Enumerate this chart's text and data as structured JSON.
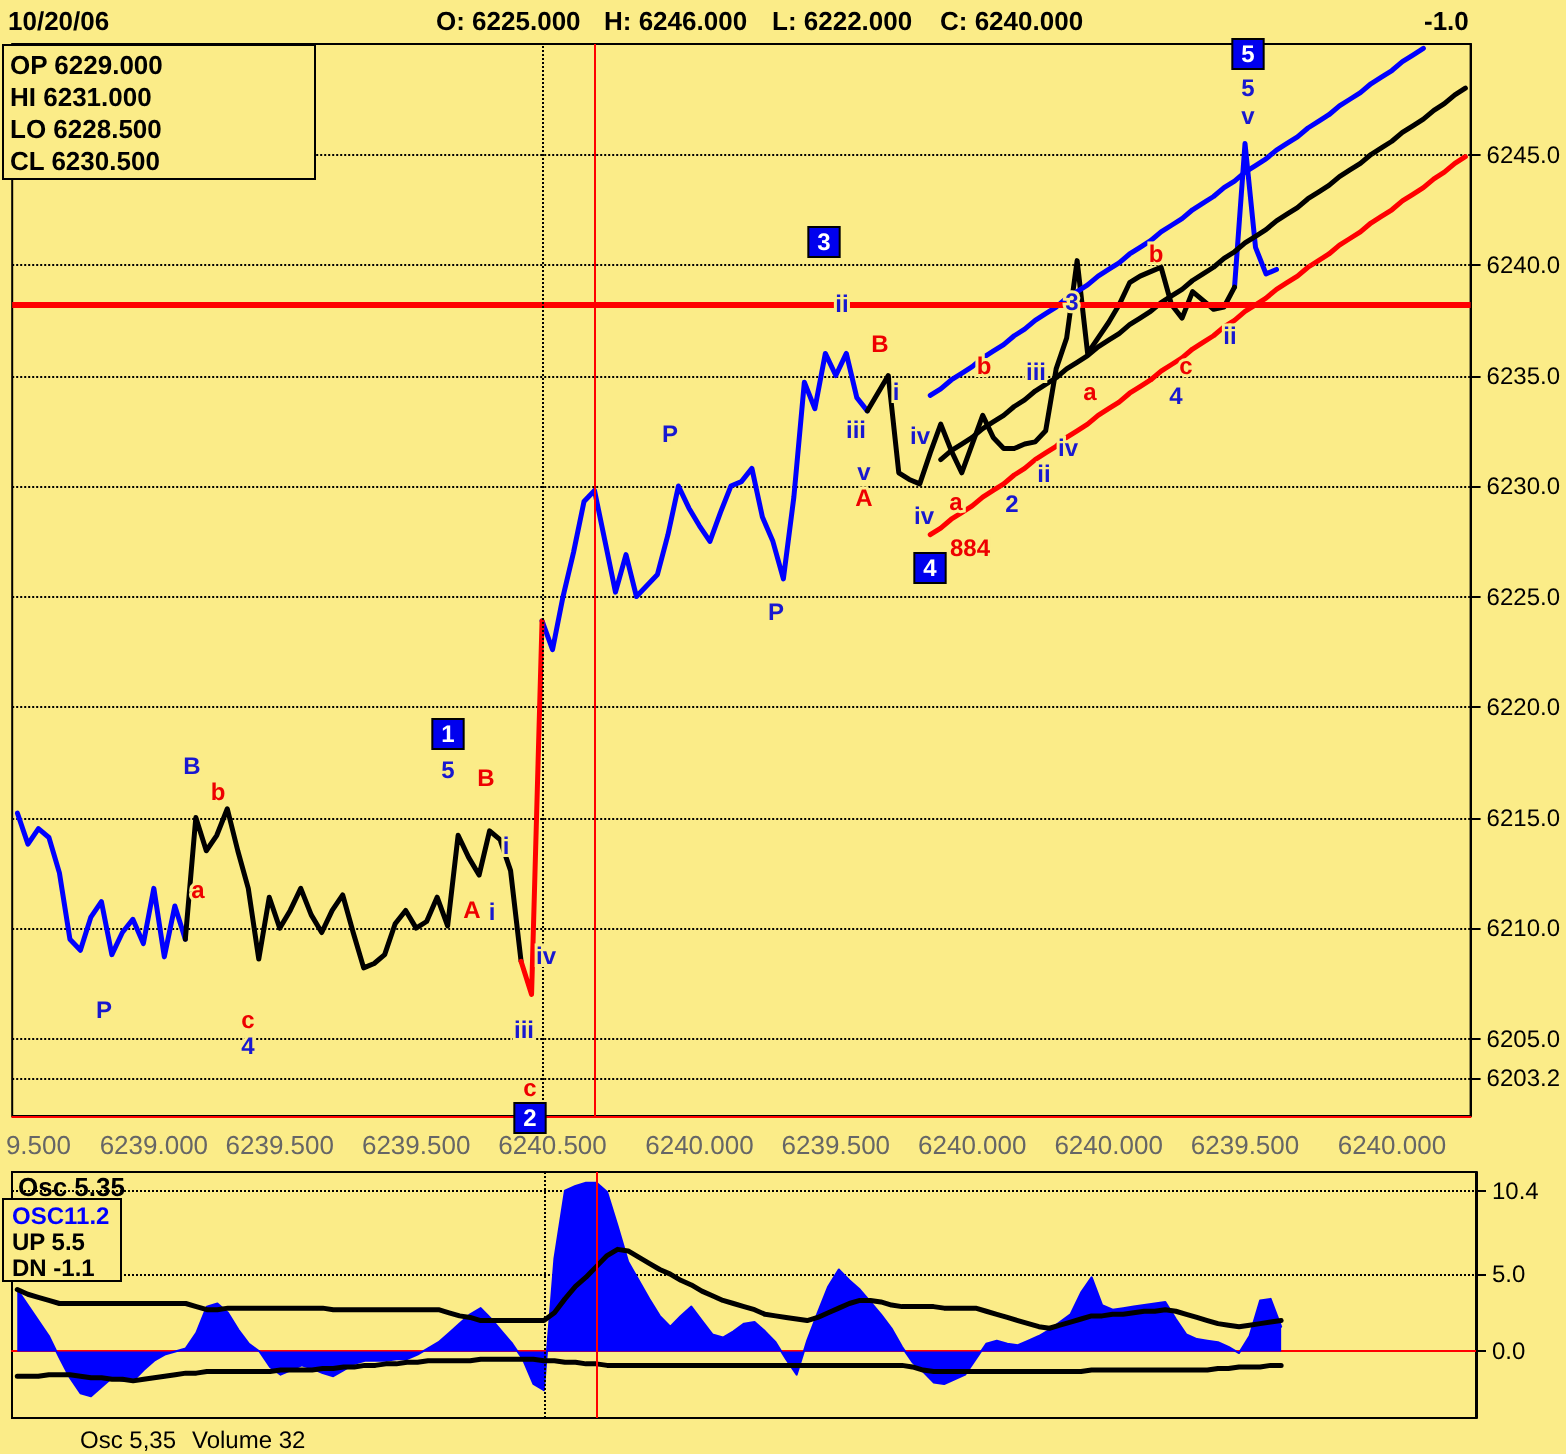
{
  "chart_data": [
    {
      "type": "line",
      "categories": [
        null,
        null,
        "9.500",
        null,
        null,
        null,
        null,
        null,
        null,
        null,
        null,
        null,
        null,
        "6239.000",
        null,
        null,
        null,
        null,
        null,
        null,
        null,
        null,
        null,
        null,
        null,
        "6239.500",
        null,
        null,
        null,
        null,
        null,
        null,
        null,
        null,
        null,
        null,
        null,
        null,
        "6239.500",
        null,
        null,
        null,
        null,
        null,
        null,
        null,
        null,
        null,
        null,
        null,
        null,
        "6240.500",
        null,
        null,
        null,
        null,
        null,
        null,
        null,
        null,
        null,
        null,
        null,
        null,
        null,
        "6240.000",
        null,
        null,
        null,
        null,
        null,
        null,
        null,
        null,
        null,
        null,
        null,
        null,
        "6239.500",
        null,
        null,
        null,
        null,
        null,
        null,
        null,
        null,
        null,
        null,
        null,
        null,
        "6240.000",
        null,
        null,
        null,
        null,
        null,
        null,
        null,
        null,
        null,
        null,
        null,
        null,
        "6240.000",
        null,
        null,
        null,
        null,
        null,
        null,
        null,
        null,
        null,
        null,
        null,
        null,
        "6239.500",
        null,
        null,
        null,
        null,
        null,
        null,
        null,
        null,
        null,
        null,
        null,
        null,
        null,
        "6240.000",
        null,
        null,
        null,
        null,
        null,
        null,
        null
      ],
      "ylim": [
        6201.5,
        6250
      ],
      "yticks": [
        6203.2,
        {
          "value": 6205,
          "label": "6205.0"
        },
        {
          "value": 6210,
          "label": "6210.0"
        },
        {
          "value": 6215,
          "label": "6215.0"
        },
        {
          "value": 6220,
          "label": "6220.0"
        },
        {
          "value": 6225,
          "label": "6225.0"
        },
        {
          "value": 6230,
          "label": "6230.0"
        },
        {
          "value": 6235,
          "label": "6235.0"
        },
        {
          "value": 6240,
          "label": "6240.0"
        },
        {
          "value": 6245,
          "label": "6245.0"
        }
      ],
      "grid": "y",
      "marker": "none",
      "line_style": "solid",
      "series": [
        {
          "color": "#0000ff",
          "values": [
            6215.2,
            6213.8,
            6214.5,
            6214.1,
            6212.5,
            6209.5,
            6209.0,
            6210.5,
            6211.2,
            6208.8,
            6209.8,
            6210.4,
            6209.3,
            6211.8,
            6208.7,
            6211.0,
            6209.5,
            null,
            null,
            null,
            null,
            null,
            null,
            null,
            null,
            null,
            null,
            null,
            null,
            null,
            null,
            null,
            null,
            null,
            null,
            null,
            null,
            null,
            null,
            null,
            null,
            null,
            null,
            null,
            null,
            null,
            null,
            null,
            null,
            null,
            6223.9,
            6222.6,
            6225.0,
            6227.0,
            6229.3,
            6229.8,
            6227.5,
            6225.2,
            6226.9,
            6225.0,
            6225.5,
            6226.0,
            6227.8,
            6230.0,
            6229.0,
            6228.2,
            6227.5,
            6228.8,
            6230.0,
            6230.2,
            6230.8,
            6228.6,
            6227.5,
            6225.8,
            6229.5,
            6234.7,
            6233.5,
            6236.0,
            6235.0,
            6236.0,
            6234.0,
            6233.4,
            null,
            null,
            null,
            null,
            null,
            null,
            null,
            null,
            null,
            null,
            null,
            null,
            null,
            null,
            null,
            null,
            null,
            null,
            null,
            null,
            null,
            null,
            null,
            null,
            null,
            null,
            null,
            null,
            null,
            null,
            null,
            null,
            null,
            null,
            6239.0,
            6245.5,
            6240.8,
            6239.6,
            6239.8,
            null,
            null,
            null,
            null,
            null,
            null,
            null,
            null,
            null,
            null,
            null,
            null,
            null,
            null,
            null,
            null,
            null,
            null
          ]
        },
        {
          "color": "#000000",
          "values": [
            null,
            null,
            null,
            null,
            null,
            null,
            null,
            null,
            null,
            null,
            null,
            null,
            null,
            null,
            null,
            null,
            6209.5,
            6215.0,
            6213.5,
            6214.2,
            6215.4,
            6213.5,
            6211.8,
            6208.6,
            6211.4,
            6210.0,
            6210.8,
            6211.8,
            6210.6,
            6209.8,
            6210.8,
            6211.5,
            6209.8,
            6208.2,
            6208.4,
            6208.8,
            6210.2,
            6210.8,
            6210.0,
            6210.3,
            6211.4,
            6210.1,
            6214.2,
            6213.2,
            6212.4,
            6214.4,
            6214.0,
            6212.6,
            6208.5,
            null,
            null,
            null,
            null,
            null,
            null,
            null,
            null,
            null,
            null,
            null,
            null,
            null,
            null,
            null,
            null,
            null,
            null,
            null,
            null,
            null,
            null,
            null,
            null,
            null,
            null,
            null,
            null,
            null,
            null,
            null,
            null,
            6233.4,
            6234.2,
            6235.0,
            6230.6,
            6230.3,
            6230.1,
            6231.5,
            6232.8,
            6231.6,
            6230.6,
            6231.9,
            6233.2,
            6232.2,
            6231.7,
            6231.7,
            6231.9,
            6232.0,
            6232.5,
            6235.3,
            6236.7,
            6240.2,
            6236.0,
            6236.7,
            6237.4,
            6238.2,
            6239.2,
            6239.5,
            6239.7,
            6239.9,
            6238.2,
            6237.6,
            6238.8,
            6238.4,
            6238.0,
            6238.1,
            6239.0,
            null,
            null,
            null,
            null,
            null,
            null,
            null,
            null,
            null,
            null,
            null,
            null,
            null,
            null,
            null,
            null,
            null,
            null,
            null,
            null,
            null,
            null
          ]
        },
        {
          "color": "#ff0000",
          "values": [
            null,
            null,
            null,
            null,
            null,
            null,
            null,
            null,
            null,
            null,
            null,
            null,
            null,
            null,
            null,
            null,
            null,
            null,
            null,
            null,
            null,
            null,
            null,
            null,
            null,
            null,
            null,
            null,
            null,
            null,
            null,
            null,
            null,
            null,
            null,
            null,
            null,
            null,
            null,
            null,
            null,
            null,
            null,
            null,
            null,
            null,
            null,
            null,
            6208.5,
            6207.0,
            6223.9,
            null,
            null,
            null,
            null,
            null,
            null,
            null,
            null,
            null,
            null,
            null,
            null,
            null,
            null,
            null,
            null,
            null,
            null,
            null,
            null,
            null,
            null,
            null,
            null,
            null,
            null,
            null,
            null,
            null,
            null,
            null,
            null,
            null,
            null,
            null,
            null,
            null,
            null,
            null,
            null,
            null,
            null,
            null,
            null,
            null,
            null,
            null,
            null,
            null,
            null,
            null,
            null,
            null,
            null,
            null,
            null,
            null,
            null,
            null,
            null,
            null,
            null,
            null,
            null,
            null,
            null,
            null,
            null,
            null,
            null,
            null,
            null,
            null,
            null,
            null,
            null,
            null,
            null,
            null,
            null,
            null,
            null,
            null,
            null,
            null,
            null,
            null,
            null
          ]
        },
        {
          "color": "#0000ff",
          "values": [
            null,
            null,
            null,
            null,
            null,
            null,
            null,
            null,
            null,
            null,
            null,
            null,
            null,
            null,
            null,
            null,
            null,
            null,
            null,
            null,
            null,
            null,
            null,
            null,
            null,
            null,
            null,
            null,
            null,
            null,
            null,
            null,
            null,
            null,
            null,
            null,
            null,
            null,
            null,
            null,
            null,
            null,
            null,
            null,
            null,
            null,
            null,
            null,
            null,
            null,
            null,
            null,
            null,
            null,
            null,
            null,
            null,
            null,
            null,
            null,
            null,
            null,
            null,
            null,
            null,
            null,
            null,
            null,
            null,
            null,
            null,
            null,
            null,
            null,
            null,
            null,
            null,
            null,
            null,
            null,
            null,
            null,
            null,
            null,
            null,
            null,
            null,
            6234.1,
            6234.4,
            6234.8,
            6235.1,
            6235.4,
            6235.8,
            6236.1,
            6236.4,
            6236.8,
            6237.1,
            6237.5,
            6237.8,
            6238.1,
            6238.5,
            6238.8,
            6239.1,
            6239.5,
            6239.8,
            6240.1,
            6240.5,
            6240.8,
            6241.1,
            6241.5,
            6241.8,
            6242.1,
            6242.5,
            6242.8,
            6243.1,
            6243.5,
            6243.8,
            6244.2,
            6244.5,
            6244.8,
            6245.2,
            6245.5,
            6245.8,
            6246.2,
            6246.5,
            6246.8,
            6247.2,
            6247.5,
            6247.8,
            6248.2,
            6248.5,
            6248.8,
            6249.2,
            6249.5,
            6249.8,
            null,
            null,
            null,
            null
          ]
        },
        {
          "color": "#000000",
          "values": [
            null,
            null,
            null,
            null,
            null,
            null,
            null,
            null,
            null,
            null,
            null,
            null,
            null,
            null,
            null,
            null,
            null,
            null,
            null,
            null,
            null,
            null,
            null,
            null,
            null,
            null,
            null,
            null,
            null,
            null,
            null,
            null,
            null,
            null,
            null,
            null,
            null,
            null,
            null,
            null,
            null,
            null,
            null,
            null,
            null,
            null,
            null,
            null,
            null,
            null,
            null,
            null,
            null,
            null,
            null,
            null,
            null,
            null,
            null,
            null,
            null,
            null,
            null,
            null,
            null,
            null,
            null,
            null,
            null,
            null,
            null,
            null,
            null,
            null,
            null,
            null,
            null,
            null,
            null,
            null,
            null,
            null,
            null,
            null,
            null,
            null,
            null,
            null,
            6231.2,
            6231.6,
            6231.9,
            6232.2,
            6232.6,
            6232.9,
            6233.2,
            6233.6,
            6233.9,
            6234.3,
            6234.6,
            6234.9,
            6235.3,
            6235.6,
            6235.9,
            6236.3,
            6236.6,
            6236.9,
            6237.3,
            6237.6,
            6237.9,
            6238.3,
            6238.6,
            6238.9,
            6239.3,
            6239.6,
            6239.9,
            6240.3,
            6240.6,
            6241.0,
            6241.3,
            6241.6,
            6242.0,
            6242.3,
            6242.6,
            6243.0,
            6243.3,
            6243.6,
            6244.0,
            6244.3,
            6244.6,
            6245.0,
            6245.3,
            6245.6,
            6246.0,
            6246.3,
            6246.6,
            6247.0,
            6247.3,
            6247.7,
            6248.0
          ]
        },
        {
          "color": "#ff0000",
          "values": [
            null,
            null,
            null,
            null,
            null,
            null,
            null,
            null,
            null,
            null,
            null,
            null,
            null,
            null,
            null,
            null,
            null,
            null,
            null,
            null,
            null,
            null,
            null,
            null,
            null,
            null,
            null,
            null,
            null,
            null,
            null,
            null,
            null,
            null,
            null,
            null,
            null,
            null,
            null,
            null,
            null,
            null,
            null,
            null,
            null,
            null,
            null,
            null,
            null,
            null,
            null,
            null,
            null,
            null,
            null,
            null,
            null,
            null,
            null,
            null,
            null,
            null,
            null,
            null,
            null,
            null,
            null,
            null,
            null,
            null,
            null,
            null,
            null,
            null,
            null,
            null,
            null,
            null,
            null,
            null,
            null,
            null,
            null,
            null,
            null,
            null,
            null,
            6227.8,
            6228.1,
            6228.5,
            6228.8,
            6229.1,
            6229.5,
            6229.8,
            6230.1,
            6230.5,
            6230.8,
            6231.2,
            6231.5,
            6231.8,
            6232.2,
            6232.5,
            6232.8,
            6233.2,
            6233.5,
            6233.8,
            6234.2,
            6234.5,
            6234.8,
            6235.2,
            6235.5,
            6235.8,
            6236.2,
            6236.5,
            6236.8,
            6237.2,
            6237.5,
            6237.9,
            6238.2,
            6238.5,
            6238.9,
            6239.2,
            6239.5,
            6239.9,
            6240.2,
            6240.5,
            6240.9,
            6241.2,
            6241.5,
            6241.9,
            6242.2,
            6242.5,
            6242.9,
            6243.2,
            6243.5,
            6243.9,
            6244.2,
            6244.6,
            6244.9
          ]
        }
      ],
      "ref_lines": [
        {
          "axis": "y",
          "value": 6238.2,
          "color": "#ff0000",
          "line_style": "solid"
        }
      ],
      "annotations": [
        "10/20/06",
        "O: 6225.000",
        "H: 6246.000",
        "L: 6222.000",
        "C: 6240.000",
        "-1.0",
        "OP 6229.000",
        "HI 6231.000",
        "LO 6228.500",
        "CL 6230.500",
        "P",
        "B",
        "b",
        "a",
        "c",
        "4",
        "1",
        "5",
        "B",
        "A",
        "i",
        "i",
        "iv",
        "iii",
        "c",
        "2",
        "P",
        "P",
        "3",
        "ii",
        "B",
        "iii",
        "v",
        "A",
        "i",
        "iv",
        "iv",
        "4",
        "884",
        "a",
        "b",
        "2",
        "ii",
        "iv",
        "iii",
        "a",
        "3",
        "b",
        "c",
        "4",
        "ii",
        "5",
        "5",
        "v"
      ]
    },
    {
      "type": "line",
      "title": "Osc 5.35",
      "categories": [
        null,
        null,
        "9.500",
        null,
        null,
        null,
        null,
        null,
        null,
        null,
        null,
        null,
        null,
        "6239.000",
        null,
        null,
        null,
        null,
        null,
        null,
        null,
        null,
        null,
        null,
        null,
        "6239.500",
        null,
        null,
        null,
        null,
        null,
        null,
        null,
        null,
        null,
        null,
        null,
        null,
        "6239.500",
        null,
        null,
        null,
        null,
        null,
        null,
        null,
        null,
        null,
        null,
        null,
        null,
        "6240.500",
        null,
        null,
        null,
        null,
        null,
        null,
        null,
        null,
        null,
        null,
        null,
        null,
        null,
        "6240.000",
        null,
        null,
        null,
        null,
        null,
        null,
        null,
        null,
        null,
        null,
        null,
        null,
        "6239.500",
        null,
        null,
        null,
        null,
        null,
        null,
        null,
        null,
        null,
        null,
        null,
        null,
        "6240.000",
        null,
        null,
        null,
        null,
        null,
        null,
        null,
        null,
        null,
        null,
        null,
        null,
        "6240.000",
        null,
        null,
        null,
        null,
        null,
        null,
        null,
        null,
        null,
        null,
        null,
        null,
        "6239.500",
        null,
        null,
        null,
        null,
        null,
        null,
        null,
        null,
        null,
        null,
        null,
        null,
        null,
        "6240.000",
        null,
        null,
        null,
        null,
        null,
        null,
        null
      ],
      "tick_labels": "y",
      "ylim": [
        -4.3,
        11.6
      ],
      "yticks": [
        {
          "value": 0,
          "label": "0.0"
        },
        {
          "value": 5,
          "label": "5.0"
        },
        10.4
      ],
      "grid": "y",
      "marker": "none",
      "line_style": "solid",
      "series": [
        {
          "type": "area",
          "color": "#0000ff",
          "values": [
            4.0,
            3.0,
            2.0,
            1.0,
            -0.4,
            -1.7,
            -2.7,
            -2.9,
            -2.3,
            -1.7,
            -1.9,
            -1.9,
            -1.2,
            -0.6,
            -0.2,
            0.0,
            0.2,
            1.2,
            2.9,
            3.1,
            2.5,
            1.4,
            0.5,
            0.0,
            -1.0,
            -1.5,
            -1.2,
            -0.9,
            -1.1,
            -1.4,
            -1.6,
            -1.2,
            -0.8,
            -0.6,
            -0.6,
            -0.6,
            -0.5,
            -0.5,
            -0.2,
            0.2,
            0.6,
            1.2,
            1.8,
            2.4,
            2.8,
            2.1,
            1.3,
            0.5,
            -0.5,
            -2.1,
            -2.5,
            6.0,
            10.4,
            10.7,
            10.9,
            10.9,
            10.3,
            8.1,
            5.8,
            4.6,
            3.4,
            2.3,
            1.6,
            2.3,
            2.9,
            2.0,
            1.1,
            0.9,
            1.3,
            1.8,
            1.9,
            1.3,
            0.6,
            -0.5,
            -1.5,
            0.7,
            2.5,
            4.2,
            5.3,
            4.6,
            4.0,
            3.2,
            2.4,
            1.5,
            0.3,
            -0.7,
            -1.3,
            -2.0,
            -2.1,
            -1.8,
            -1.5,
            -0.5,
            0.5,
            0.7,
            0.5,
            0.4,
            0.7,
            1.0,
            1.4,
            1.9,
            2.4,
            3.8,
            4.8,
            3.0,
            2.7,
            2.8,
            2.9,
            3.0,
            3.1,
            3.2,
            2.1,
            1.1,
            0.8,
            0.7,
            0.6,
            0.3,
            -0.1,
            1.0,
            3.3,
            3.4,
            1.6,
            null,
            null,
            null,
            null,
            null,
            null,
            null,
            null,
            null,
            null,
            null,
            null,
            null,
            null,
            null,
            null,
            null,
            null
          ]
        },
        {
          "color": "#000000",
          "values": [
            4.0,
            3.7,
            3.5,
            3.3,
            3.1,
            3.1,
            3.1,
            3.1,
            3.1,
            3.1,
            3.1,
            3.1,
            3.1,
            3.1,
            3.1,
            3.1,
            3.1,
            2.9,
            2.7,
            2.7,
            2.8,
            2.8,
            2.8,
            2.8,
            2.8,
            2.8,
            2.8,
            2.8,
            2.8,
            2.8,
            2.7,
            2.7,
            2.7,
            2.7,
            2.7,
            2.7,
            2.7,
            2.7,
            2.7,
            2.7,
            2.7,
            2.5,
            2.3,
            2.2,
            2.0,
            2.0,
            2.0,
            2.0,
            2.0,
            2.0,
            2.0,
            2.5,
            3.4,
            4.2,
            4.8,
            5.5,
            6.2,
            6.6,
            6.5,
            6.1,
            5.7,
            5.3,
            5.0,
            4.6,
            4.3,
            3.9,
            3.6,
            3.3,
            3.1,
            2.9,
            2.7,
            2.4,
            2.3,
            2.2,
            2.1,
            2.0,
            2.2,
            2.5,
            2.8,
            3.1,
            3.3,
            3.3,
            3.2,
            3.0,
            2.9,
            2.9,
            2.9,
            2.9,
            2.8,
            2.8,
            2.8,
            2.8,
            2.6,
            2.4,
            2.2,
            2.0,
            1.8,
            1.6,
            1.5,
            1.7,
            1.9,
            2.1,
            2.3,
            2.3,
            2.4,
            2.4,
            2.5,
            2.6,
            2.6,
            2.7,
            2.6,
            2.4,
            2.2,
            2.0,
            1.8,
            1.7,
            1.6,
            1.7,
            1.8,
            1.9,
            2.0,
            null,
            null,
            null,
            null,
            null,
            null,
            null,
            null,
            null,
            null,
            null,
            null,
            null,
            null,
            null,
            null,
            null,
            null
          ]
        },
        {
          "color": "#000000",
          "values": [
            -1.6,
            -1.6,
            -1.6,
            -1.5,
            -1.5,
            -1.5,
            -1.6,
            -1.7,
            -1.7,
            -1.8,
            -1.8,
            -1.9,
            -1.8,
            -1.7,
            -1.6,
            -1.5,
            -1.4,
            -1.4,
            -1.3,
            -1.3,
            -1.3,
            -1.3,
            -1.3,
            -1.3,
            -1.3,
            -1.2,
            -1.2,
            -1.2,
            -1.2,
            -1.1,
            -1.1,
            -1.0,
            -1.0,
            -0.9,
            -0.9,
            -0.8,
            -0.8,
            -0.7,
            -0.7,
            -0.6,
            -0.6,
            -0.6,
            -0.6,
            -0.6,
            -0.5,
            -0.5,
            -0.5,
            -0.5,
            -0.5,
            -0.5,
            -0.6,
            -0.6,
            -0.7,
            -0.7,
            -0.8,
            -0.8,
            -0.9,
            -0.9,
            -0.9,
            -0.9,
            -0.9,
            -0.9,
            -0.9,
            -0.9,
            -0.9,
            -0.9,
            -0.9,
            -0.9,
            -0.9,
            -0.9,
            -0.9,
            -0.9,
            -0.9,
            -0.9,
            -0.9,
            -0.9,
            -0.9,
            -0.9,
            -0.9,
            -0.9,
            -0.9,
            -0.9,
            -0.9,
            -0.9,
            -0.9,
            -1.0,
            -1.2,
            -1.3,
            -1.3,
            -1.3,
            -1.3,
            -1.3,
            -1.3,
            -1.3,
            -1.3,
            -1.3,
            -1.3,
            -1.3,
            -1.3,
            -1.3,
            -1.3,
            -1.3,
            -1.2,
            -1.2,
            -1.2,
            -1.2,
            -1.2,
            -1.2,
            -1.2,
            -1.2,
            -1.2,
            -1.2,
            -1.2,
            -1.2,
            -1.1,
            -1.1,
            -1.0,
            -1.0,
            -1.0,
            -0.9,
            -0.9,
            null,
            null,
            null,
            null,
            null,
            null,
            null,
            null,
            null,
            null,
            null,
            null,
            null,
            null,
            null,
            null,
            null,
            null
          ]
        }
      ],
      "annotations": [
        "OSC11.2",
        "UP 5.5",
        "DN -1.1",
        "Osc 5,35",
        "Volume 32"
      ]
    }
  ]
}
